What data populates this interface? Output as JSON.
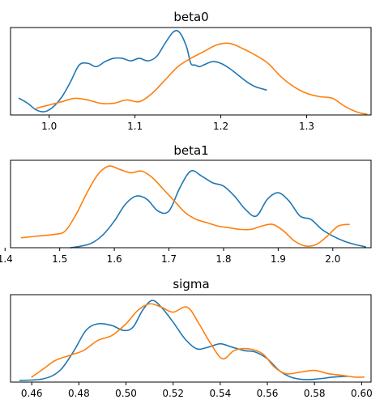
{
  "chart_data": [
    {
      "type": "line",
      "title": "beta0",
      "xlabel": "",
      "ylabel": "",
      "xlim": [
        0.955,
        1.375
      ],
      "ylim": [
        0,
        1.05
      ],
      "xticks": [
        1.0,
        1.1,
        1.2,
        1.3
      ],
      "xtick_labels": [
        "1.0",
        "1.1",
        "1.2",
        "1.3"
      ],
      "yticks_visible": false,
      "grid": false,
      "series": [
        {
          "color": "#1f77b4",
          "x": [
            0.965,
            0.975,
            0.985,
            0.995,
            1.005,
            1.015,
            1.025,
            1.035,
            1.045,
            1.055,
            1.065,
            1.075,
            1.085,
            1.095,
            1.105,
            1.115,
            1.125,
            1.135,
            1.145,
            1.152,
            1.16,
            1.165,
            1.17,
            1.175,
            1.18,
            1.19,
            1.2,
            1.21,
            1.22,
            1.23,
            1.24,
            1.253
          ],
          "y": [
            0.2,
            0.14,
            0.06,
            0.04,
            0.1,
            0.22,
            0.4,
            0.6,
            0.62,
            0.58,
            0.64,
            0.68,
            0.68,
            0.65,
            0.68,
            0.65,
            0.7,
            0.86,
            1.0,
            0.99,
            0.82,
            0.62,
            0.6,
            0.58,
            0.6,
            0.64,
            0.62,
            0.56,
            0.48,
            0.4,
            0.34,
            0.3
          ]
        },
        {
          "color": "#ff7f0e",
          "x": [
            0.985,
            1.0,
            1.015,
            1.03,
            1.045,
            1.06,
            1.075,
            1.09,
            1.105,
            1.12,
            1.135,
            1.15,
            1.165,
            1.18,
            1.195,
            1.21,
            1.225,
            1.24,
            1.255,
            1.27,
            1.285,
            1.3,
            1.315,
            1.33,
            1.345,
            1.36,
            1.37
          ],
          "y": [
            0.08,
            0.12,
            0.16,
            0.2,
            0.18,
            0.14,
            0.14,
            0.18,
            0.16,
            0.26,
            0.42,
            0.58,
            0.68,
            0.76,
            0.84,
            0.86,
            0.8,
            0.72,
            0.62,
            0.46,
            0.34,
            0.26,
            0.22,
            0.2,
            0.1,
            0.03,
            0.01
          ]
        }
      ]
    },
    {
      "type": "line",
      "title": "beta1",
      "xlabel": "",
      "ylabel": "",
      "xlim": [
        1.41,
        2.07
      ],
      "ylim": [
        0,
        1.05
      ],
      "xticks": [
        1.4,
        1.5,
        1.6,
        1.7,
        1.8,
        1.9,
        2.0
      ],
      "xtick_labels": [
        "1.4",
        "1.5",
        "1.6",
        "1.7",
        "1.8",
        "1.9",
        "2.0"
      ],
      "yticks_visible": false,
      "grid": false,
      "series": [
        {
          "color": "#1f77b4",
          "x": [
            1.52,
            1.54,
            1.56,
            1.58,
            1.6,
            1.62,
            1.64,
            1.66,
            1.68,
            1.7,
            1.72,
            1.74,
            1.76,
            1.78,
            1.8,
            1.82,
            1.84,
            1.86,
            1.88,
            1.9,
            1.92,
            1.94,
            1.96,
            1.98,
            2.0,
            2.02,
            2.04,
            2.06
          ],
          "y": [
            0.0,
            0.02,
            0.06,
            0.16,
            0.32,
            0.52,
            0.62,
            0.58,
            0.44,
            0.44,
            0.72,
            0.92,
            0.86,
            0.78,
            0.74,
            0.62,
            0.46,
            0.38,
            0.58,
            0.66,
            0.56,
            0.38,
            0.34,
            0.22,
            0.14,
            0.08,
            0.04,
            0.01
          ]
        },
        {
          "color": "#ff7f0e",
          "x": [
            1.43,
            1.46,
            1.49,
            1.51,
            1.53,
            1.55,
            1.57,
            1.59,
            1.61,
            1.63,
            1.65,
            1.67,
            1.69,
            1.71,
            1.73,
            1.75,
            1.77,
            1.79,
            1.81,
            1.83,
            1.85,
            1.87,
            1.89,
            1.91,
            1.93,
            1.95,
            1.97,
            1.99,
            2.01,
            2.03
          ],
          "y": [
            0.12,
            0.14,
            0.16,
            0.2,
            0.4,
            0.66,
            0.88,
            0.98,
            0.94,
            0.9,
            0.92,
            0.84,
            0.7,
            0.56,
            0.42,
            0.34,
            0.3,
            0.26,
            0.24,
            0.22,
            0.22,
            0.26,
            0.28,
            0.2,
            0.08,
            0.02,
            0.04,
            0.14,
            0.26,
            0.28
          ]
        }
      ]
    },
    {
      "type": "line",
      "title": "sigma",
      "xlabel": "",
      "ylabel": "",
      "xlim": [
        0.451,
        0.604
      ],
      "ylim": [
        0,
        1.05
      ],
      "xticks": [
        0.46,
        0.48,
        0.5,
        0.52,
        0.54,
        0.56,
        0.58,
        0.6
      ],
      "xtick_labels": [
        "0.46",
        "0.48",
        "0.50",
        "0.52",
        "0.54",
        "0.56",
        "0.58",
        "0.60"
      ],
      "yticks_visible": false,
      "grid": false,
      "series": [
        {
          "color": "#1f77b4",
          "x": [
            0.455,
            0.465,
            0.472,
            0.478,
            0.483,
            0.488,
            0.494,
            0.499,
            0.503,
            0.507,
            0.511,
            0.515,
            0.52,
            0.525,
            0.53,
            0.535,
            0.54,
            0.545,
            0.55,
            0.555,
            0.56,
            0.565,
            0.57,
            0.576,
            0.582,
            0.588,
            0.594
          ],
          "y": [
            0.02,
            0.04,
            0.14,
            0.38,
            0.62,
            0.7,
            0.68,
            0.62,
            0.66,
            0.86,
            0.98,
            0.9,
            0.72,
            0.52,
            0.4,
            0.42,
            0.46,
            0.42,
            0.38,
            0.36,
            0.28,
            0.14,
            0.06,
            0.03,
            0.04,
            0.06,
            0.07
          ]
        },
        {
          "color": "#ff7f0e",
          "x": [
            0.46,
            0.465,
            0.47,
            0.476,
            0.482,
            0.488,
            0.494,
            0.5,
            0.505,
            0.51,
            0.515,
            0.52,
            0.526,
            0.531,
            0.536,
            0.541,
            0.546,
            0.552,
            0.558,
            0.563,
            0.568,
            0.574,
            0.58,
            0.586,
            0.592,
            0.597,
            0.601
          ],
          "y": [
            0.06,
            0.16,
            0.26,
            0.32,
            0.38,
            0.5,
            0.56,
            0.7,
            0.86,
            0.94,
            0.9,
            0.84,
            0.9,
            0.7,
            0.46,
            0.28,
            0.38,
            0.4,
            0.34,
            0.18,
            0.1,
            0.12,
            0.14,
            0.1,
            0.08,
            0.06,
            0.06
          ]
        }
      ]
    }
  ]
}
